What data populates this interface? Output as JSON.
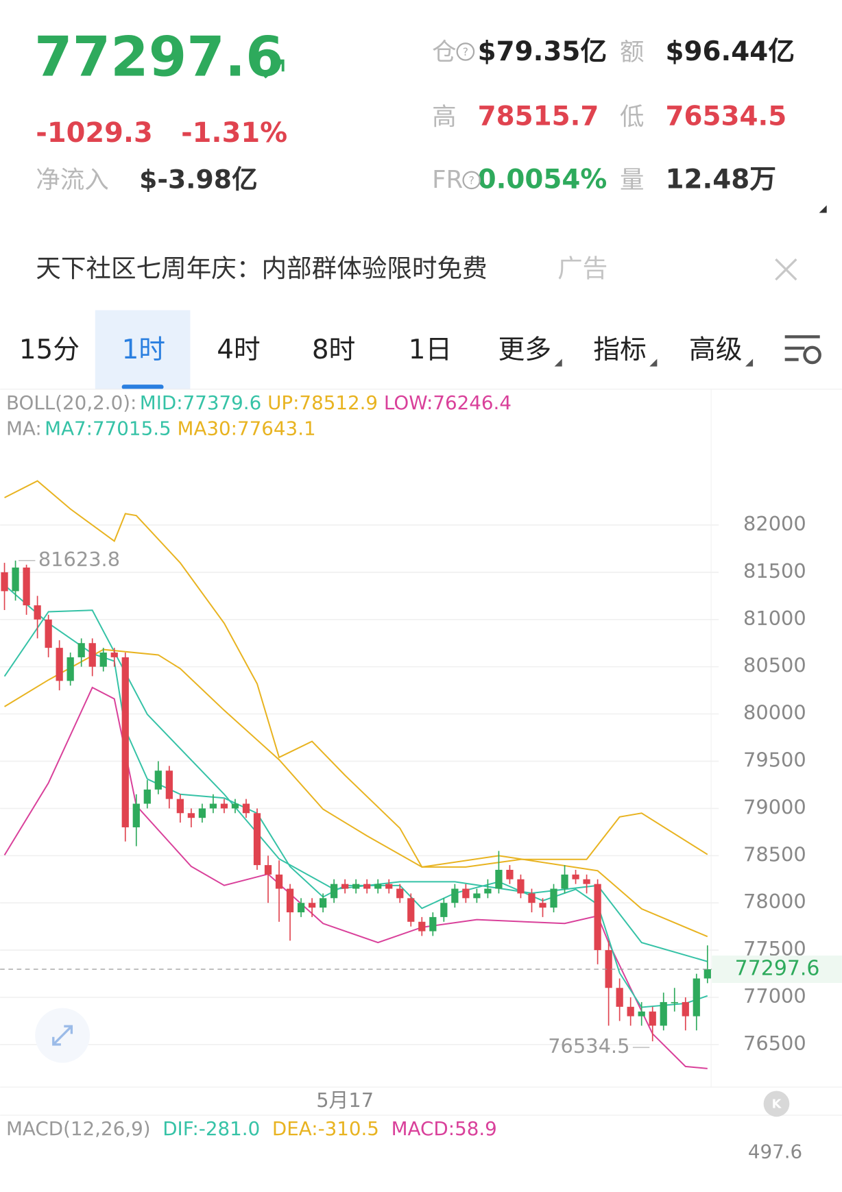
{
  "header": {
    "price": 77297.6,
    "change": -1029.3,
    "change_pct": "-1.31%",
    "net_inflow_label": "净流入",
    "net_inflow": "$-3.98亿",
    "stats": [
      {
        "label": "仓",
        "value": "$79.35亿"
      },
      {
        "label": "额",
        "value": "$96.44亿"
      },
      {
        "label": "高",
        "value": 78515.7
      },
      {
        "label": "低",
        "value": 76534.5
      },
      {
        "label": "FR",
        "value": "0.0054%"
      },
      {
        "label": "量",
        "value": "12.48万"
      }
    ]
  },
  "ad": {
    "text": "天下社区七周年庆：内部群体验限时免费",
    "tag": "广告"
  },
  "tabs": [
    "15分",
    "1时",
    "4时",
    "8时",
    "1日",
    "更多",
    "指标",
    "高级"
  ],
  "selected_tab": 1,
  "chart_data": {
    "type": "candlestick",
    "up_color": "#2eaa5c",
    "down_color": "#e0434f",
    "candles": [
      [
        81500,
        81600,
        81100,
        81300
      ],
      [
        81300,
        81623.8,
        81200,
        81550
      ],
      [
        81550,
        81580,
        81050,
        81150
      ],
      [
        81150,
        81250,
        80800,
        81000
      ],
      [
        81000,
        81050,
        80600,
        80700
      ],
      [
        80700,
        80780,
        80250,
        80350
      ],
      [
        80350,
        80650,
        80300,
        80600
      ],
      [
        80600,
        80800,
        80500,
        80750
      ],
      [
        80750,
        80800,
        80400,
        80500
      ],
      [
        80500,
        80700,
        80450,
        80650
      ],
      [
        80650,
        80700,
        80500,
        80600
      ],
      [
        80600,
        80650,
        78650,
        78800
      ],
      [
        78800,
        79150,
        78600,
        79050
      ],
      [
        79050,
        79300,
        79000,
        79200
      ],
      [
        79200,
        79500,
        79150,
        79400
      ],
      [
        79400,
        79450,
        79000,
        79100
      ],
      [
        79100,
        79150,
        78850,
        78950
      ],
      [
        78950,
        79000,
        78800,
        78900
      ],
      [
        78900,
        79050,
        78850,
        79000
      ],
      [
        79000,
        79150,
        78950,
        79050
      ],
      [
        79050,
        79100,
        78950,
        79000
      ],
      [
        79000,
        79100,
        78950,
        79050
      ],
      [
        79050,
        79100,
        78900,
        78950
      ],
      [
        78950,
        79000,
        78350,
        78400
      ],
      [
        78400,
        78500,
        78000,
        78300
      ],
      [
        78300,
        78450,
        77800,
        78150
      ],
      [
        78150,
        78200,
        77600,
        77900
      ],
      [
        77900,
        78050,
        77850,
        78000
      ],
      [
        78000,
        78050,
        77850,
        77950
      ],
      [
        77950,
        78100,
        77900,
        78050
      ],
      [
        78050,
        78250,
        78000,
        78200
      ],
      [
        78200,
        78250,
        78100,
        78150
      ],
      [
        78150,
        78250,
        78100,
        78200
      ],
      [
        78200,
        78250,
        78100,
        78150
      ],
      [
        78150,
        78250,
        78100,
        78200
      ],
      [
        78200,
        78250,
        78100,
        78150
      ],
      [
        78150,
        78200,
        78000,
        78050
      ],
      [
        78050,
        78100,
        77750,
        77800
      ],
      [
        77800,
        77850,
        77650,
        77700
      ],
      [
        77700,
        77900,
        77650,
        77850
      ],
      [
        77850,
        78050,
        77800,
        78000
      ],
      [
        78000,
        78200,
        77950,
        78150
      ],
      [
        78150,
        78200,
        78000,
        78050
      ],
      [
        78050,
        78150,
        78000,
        78100
      ],
      [
        78100,
        78250,
        78050,
        78150
      ],
      [
        78150,
        78550,
        78100,
        78350
      ],
      [
        78350,
        78400,
        78200,
        78250
      ],
      [
        78250,
        78300,
        78050,
        78100
      ],
      [
        78100,
        78150,
        77900,
        78000
      ],
      [
        78000,
        78050,
        77850,
        77950
      ],
      [
        77950,
        78200,
        77900,
        78150
      ],
      [
        78150,
        78400,
        78100,
        78300
      ],
      [
        78300,
        78350,
        78200,
        78250
      ],
      [
        78250,
        78300,
        78100,
        78200
      ],
      [
        78200,
        78250,
        77350,
        77500
      ],
      [
        77500,
        77600,
        76700,
        77100
      ],
      [
        77100,
        77200,
        76750,
        76900
      ],
      [
        76900,
        77000,
        76700,
        76800
      ],
      [
        76800,
        76950,
        76700,
        76850
      ],
      [
        76850,
        76900,
        76534.5,
        76700
      ],
      [
        76700,
        77050,
        76650,
        76950
      ],
      [
        76950,
        77100,
        76850,
        76950
      ],
      [
        76950,
        77000,
        76650,
        76800
      ],
      [
        76800,
        77250,
        76650,
        77200
      ],
      [
        77200,
        77550,
        77150,
        77297.6
      ]
    ],
    "indicators": [
      {
        "label": "BOLL(20,2.0):",
        "series": [
          {
            "name": "MID:77379.6",
            "color": "#35c2a6",
            "x": [
              0,
              4,
              8,
              13,
              20,
              25,
              30,
              36,
              41,
              48,
              54,
              58,
              64
            ],
            "values": [
              80398,
              81082,
              81098,
              79996,
              79150,
              78466,
              78144,
              78224,
              78224,
              78103,
              78184,
              77580,
              77379.6
            ]
          },
          {
            "name": "UP:78512.9",
            "color": "#e8b320",
            "x": [
              0,
              3,
              6,
              10,
              11,
              12,
              16,
              20,
              23,
              25,
              28,
              31,
              36,
              38,
              42,
              47,
              53,
              56,
              58,
              64
            ],
            "values": [
              82290,
              82467,
              82170,
              81830,
              82120,
              82100,
              81600,
              80960,
              80320,
              79540,
              79710,
              79350,
              78790,
              78380,
              78380,
              78460,
              78460,
              78910,
              78950,
              78512.9
            ]
          },
          {
            "name": "LOW:76246.4",
            "color": "#d9409a",
            "x": [
              0,
              4,
              8,
              10,
              12,
              17,
              20,
              24,
              29,
              34,
              38,
              43,
              51,
              54,
              55,
              59,
              62,
              64
            ],
            "values": [
              78506,
              79270,
              80280,
              80160,
              79030,
              78386,
              78185,
              78305,
              77782,
              77580,
              77742,
              77823,
              77782,
              77862,
              77580,
              76614,
              76268,
              76246.4
            ]
          }
        ]
      },
      {
        "label": "MA:",
        "series": [
          {
            "name": "MA7:77015.5",
            "color": "#35c2a6",
            "x": [
              0,
              4,
              8,
              10,
              11,
              13,
              16,
              20,
              23,
              26,
              29,
              31,
              36,
              38,
              41,
              45,
              49,
              52,
              54,
              56,
              58,
              62,
              64
            ],
            "values": [
              81364,
              80961,
              80639,
              80559,
              79834,
              79311,
              79150,
              79110,
              78949,
              78385,
              78063,
              78184,
              78184,
              77942,
              78103,
              78224,
              78023,
              78144,
              77983,
              77258,
              76895,
              76936,
              77015.5
            ]
          },
          {
            "name": "MA30:77643.1",
            "color": "#e8b320",
            "x": [
              0,
              4,
              9,
              14,
              16,
              20,
              25,
              29,
              33,
              38,
              45,
              54,
              58,
              64
            ],
            "values": [
              80078,
              80360,
              80682,
              80625,
              80480,
              80038,
              79515,
              78992,
              78710,
              78380,
              78500,
              78340,
              77937,
              77643.1
            ]
          }
        ]
      }
    ],
    "xlim": [
      -0.4,
      64.4
    ],
    "xticks": [
      {
        "value": 31,
        "label": "5月17"
      }
    ],
    "ylim": [
      76050,
      82810
    ],
    "yticks": [
      76500,
      77000,
      77500,
      78000,
      78500,
      79000,
      79500,
      80000,
      80500,
      81000,
      81500,
      82000
    ],
    "grid": true
  },
  "macd": {
    "title": "MACD(12,26,9)",
    "dif": "DIF:-281.0",
    "dea": "DEA:-310.5",
    "macd": "MACD:58.9",
    "ymax": 497.6
  }
}
